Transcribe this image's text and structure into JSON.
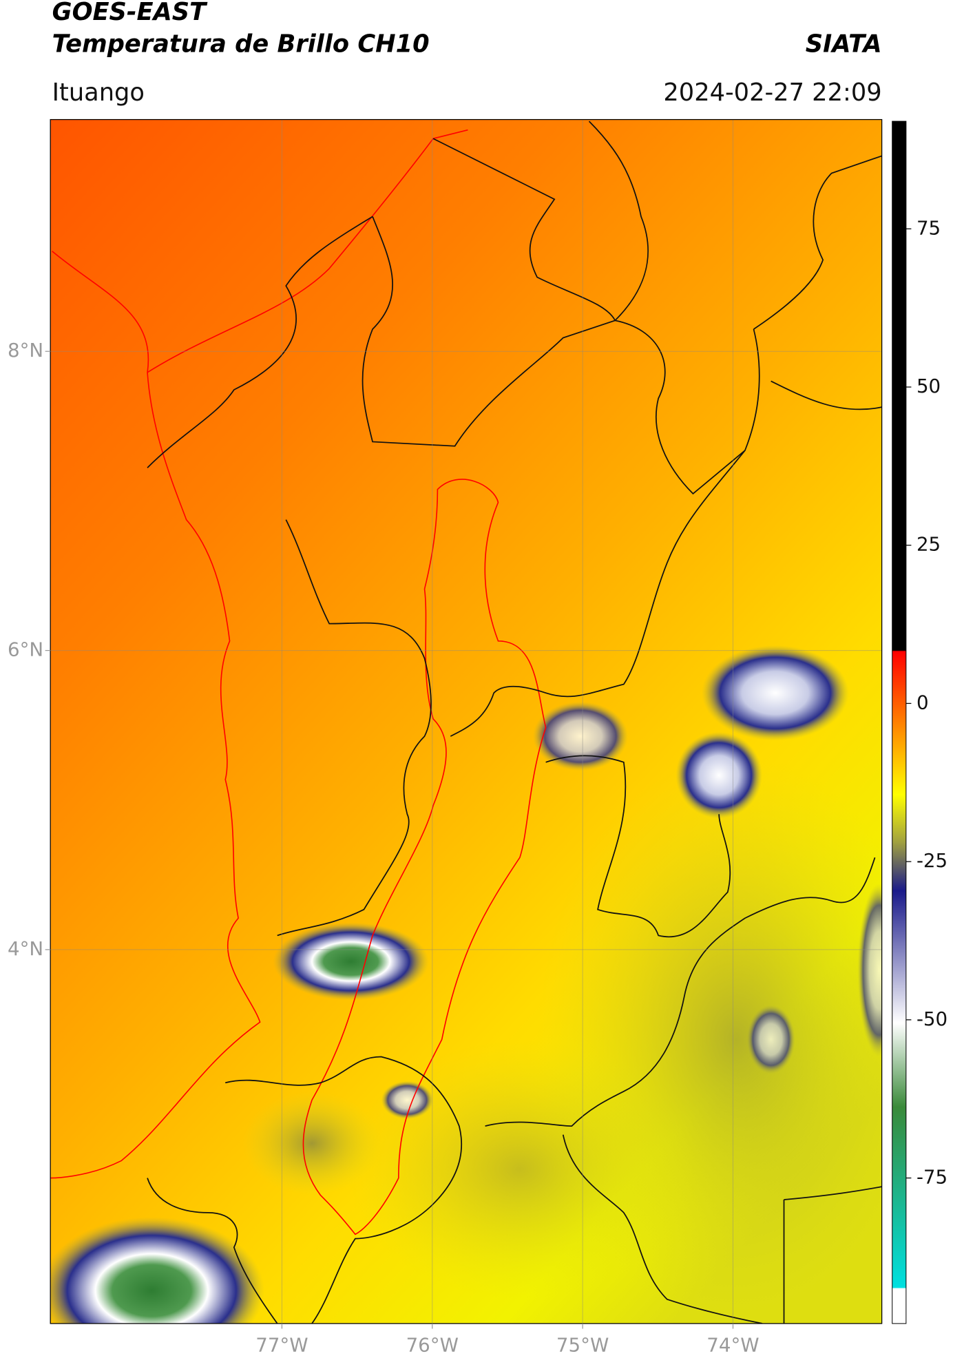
{
  "header": {
    "satellite": "GOES-EAST",
    "product": "Temperatura de Brillo CH10",
    "source": "SIATA",
    "location": "Ituango",
    "timestamp": "2024-02-27 22:09"
  },
  "map": {
    "xlim": [
      -78.54,
      -73.01
    ],
    "ylim": [
      1.5,
      9.55
    ],
    "xticks": [
      {
        "value": -77,
        "label": "77°W"
      },
      {
        "value": -76,
        "label": "76°W"
      },
      {
        "value": -75,
        "label": "75°W"
      },
      {
        "value": -74,
        "label": "74°W"
      }
    ],
    "yticks": [
      {
        "value": 8,
        "label": "8°N"
      },
      {
        "value": 6,
        "label": "6°N"
      },
      {
        "value": 4,
        "label": "4°N"
      }
    ],
    "grid": true
  },
  "colorbar": {
    "lim": [
      -98,
      92
    ],
    "ticks": [
      75,
      50,
      25,
      0,
      -25,
      -50,
      -75
    ]
  }
}
